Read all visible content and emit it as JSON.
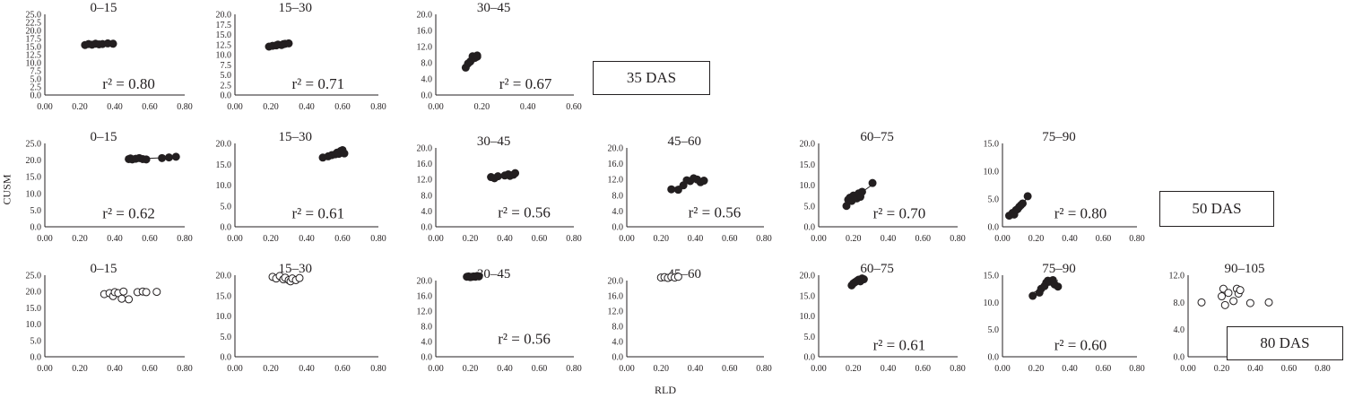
{
  "figure": {
    "y_axis_label": "CUSM",
    "x_axis_label": "RLD"
  },
  "chart_data": [
    {
      "type": "scatter",
      "row": "35 DAS",
      "title": "0–15",
      "r2": "r² = 0.80",
      "xlim": [
        0,
        0.8
      ],
      "ylim": [
        0,
        25
      ],
      "ystep": 2.5,
      "xticks": [
        "0.00",
        "0.20",
        "0.40",
        "0.60",
        "0.80"
      ],
      "yticks": [
        "0.0",
        "2.5",
        "5.0",
        "7.5",
        "10.0",
        "12.5",
        "15.0",
        "17.5",
        "20.0",
        "22.5",
        "25.0"
      ],
      "marker": "filled",
      "trendline": true,
      "x": [
        0.23,
        0.25,
        0.27,
        0.29,
        0.31,
        0.33,
        0.36,
        0.39
      ],
      "y": [
        15.5,
        15.8,
        15.6,
        15.9,
        15.7,
        15.8,
        16.0,
        15.9
      ]
    },
    {
      "type": "scatter",
      "row": "35 DAS",
      "title": "15–30",
      "r2": "r² = 0.71",
      "xlim": [
        0,
        0.8
      ],
      "ylim": [
        0,
        20
      ],
      "ystep": 2.5,
      "xticks": [
        "0.00",
        "0.20",
        "0.40",
        "0.60",
        "0.80"
      ],
      "yticks": [
        "0.0",
        "2.5",
        "5.0",
        "7.5",
        "10.0",
        "12.5",
        "15.0",
        "17.5",
        "20.0"
      ],
      "marker": "filled",
      "trendline": true,
      "x": [
        0.19,
        0.21,
        0.23,
        0.24,
        0.26,
        0.27,
        0.28,
        0.3
      ],
      "y": [
        12.0,
        12.2,
        12.3,
        12.5,
        12.4,
        12.6,
        12.7,
        12.8
      ]
    },
    {
      "type": "scatter",
      "row": "35 DAS",
      "title": "30–45",
      "r2": "r² = 0.67",
      "xlim": [
        0,
        0.6
      ],
      "ylim": [
        0,
        20
      ],
      "ystep": 2.0,
      "xticks": [
        "0.00",
        "0.20",
        "0.40",
        "0.60"
      ],
      "yticks": [
        "0.0",
        "4.0",
        "8.0",
        "12.0",
        "16.0",
        "20.0"
      ],
      "marker": "filled",
      "trendline": true,
      "x": [
        0.13,
        0.14,
        0.15,
        0.16,
        0.16,
        0.17,
        0.18,
        0.18
      ],
      "y": [
        6.8,
        7.8,
        8.3,
        9.0,
        9.6,
        9.2,
        9.8,
        9.5
      ]
    },
    {
      "type": "scatter",
      "row": "50 DAS",
      "title": "0–15",
      "r2": "r² = 0.62",
      "xlim": [
        0,
        0.8
      ],
      "ylim": [
        0,
        25
      ],
      "ystep": 2.5,
      "xticks": [
        "0.00",
        "0.20",
        "0.40",
        "0.60",
        "0.80"
      ],
      "yticks": [
        "0.0",
        "5.0",
        "10.0",
        "15.0",
        "20.0",
        "25.0"
      ],
      "marker": "filled",
      "trendline": true,
      "x": [
        0.48,
        0.49,
        0.5,
        0.52,
        0.54,
        0.56,
        0.58,
        0.67,
        0.71,
        0.75
      ],
      "y": [
        20.3,
        20.5,
        20.2,
        20.4,
        20.6,
        20.3,
        20.2,
        20.6,
        20.8,
        21.0
      ]
    },
    {
      "type": "scatter",
      "row": "50 DAS",
      "title": "15–30",
      "r2": "r² = 0.61",
      "xlim": [
        0,
        0.8
      ],
      "ylim": [
        0,
        20
      ],
      "ystep": 2.5,
      "xticks": [
        "0.00",
        "0.20",
        "0.40",
        "0.60",
        "0.80"
      ],
      "yticks": [
        "0.0",
        "5.0",
        "10.0",
        "15.0",
        "20.0"
      ],
      "marker": "filled",
      "trendline": true,
      "x": [
        0.49,
        0.52,
        0.54,
        0.56,
        0.57,
        0.58,
        0.59,
        0.6,
        0.61
      ],
      "y": [
        16.6,
        16.9,
        17.2,
        17.4,
        17.8,
        17.5,
        18.2,
        18.4,
        17.6
      ]
    },
    {
      "type": "scatter",
      "row": "50 DAS",
      "title": "30–45",
      "r2": "r² = 0.56",
      "xlim": [
        0,
        0.8
      ],
      "ylim": [
        0,
        20
      ],
      "ystep": 2.0,
      "xticks": [
        "0.00",
        "0.20",
        "0.40",
        "0.60",
        "0.80"
      ],
      "yticks": [
        "0.0",
        "4.0",
        "8.0",
        "12.0",
        "16.0",
        "20.0"
      ],
      "marker": "filled",
      "trendline": true,
      "x": [
        0.32,
        0.34,
        0.36,
        0.4,
        0.42,
        0.43,
        0.45,
        0.46
      ],
      "y": [
        12.6,
        12.3,
        12.8,
        13.0,
        13.3,
        12.9,
        13.2,
        13.6
      ]
    },
    {
      "type": "scatter",
      "row": "50 DAS",
      "title": "45–60",
      "r2": "r² = 0.56",
      "xlim": [
        0,
        0.8
      ],
      "ylim": [
        0,
        20
      ],
      "ystep": 2.0,
      "xticks": [
        "0.00",
        "0.20",
        "0.40",
        "0.60",
        "0.80"
      ],
      "yticks": [
        "0.0",
        "4.0",
        "8.0",
        "12.0",
        "16.0",
        "20.0"
      ],
      "marker": "filled",
      "trendline": true,
      "x": [
        0.26,
        0.3,
        0.33,
        0.35,
        0.37,
        0.39,
        0.41,
        0.43,
        0.45
      ],
      "y": [
        9.5,
        9.4,
        10.5,
        11.8,
        11.6,
        12.3,
        12.0,
        11.3,
        11.7
      ]
    },
    {
      "type": "scatter",
      "row": "50 DAS",
      "title": "60–75",
      "r2": "r² = 0.70",
      "xlim": [
        0,
        0.8
      ],
      "ylim": [
        0,
        20
      ],
      "ystep": 2.5,
      "xticks": [
        "0.00",
        "0.20",
        "0.40",
        "0.60",
        "0.80"
      ],
      "yticks": [
        "0.0",
        "5.0",
        "10.0",
        "15.0",
        "20.0"
      ],
      "marker": "filled",
      "trendline": true,
      "x": [
        0.16,
        0.17,
        0.18,
        0.19,
        0.2,
        0.21,
        0.22,
        0.23,
        0.24,
        0.25,
        0.31
      ],
      "y": [
        5.0,
        6.5,
        7.0,
        6.2,
        7.5,
        7.0,
        6.8,
        8.0,
        7.2,
        8.4,
        10.5
      ]
    },
    {
      "type": "scatter",
      "row": "50 DAS",
      "title": "75–90",
      "r2": "r² = 0.80",
      "xlim": [
        0,
        0.8
      ],
      "ylim": [
        0,
        15
      ],
      "ystep": 2.5,
      "xticks": [
        "0.00",
        "0.20",
        "0.40",
        "0.60",
        "0.80"
      ],
      "yticks": [
        "0.0",
        "5.0",
        "10.0",
        "15.0"
      ],
      "marker": "filled",
      "trendline": true,
      "x": [
        0.04,
        0.06,
        0.07,
        0.08,
        0.09,
        0.1,
        0.11,
        0.12,
        0.15
      ],
      "y": [
        2.0,
        2.5,
        2.2,
        3.0,
        3.2,
        3.6,
        3.9,
        4.2,
        5.5
      ]
    },
    {
      "type": "scatter",
      "row": "80 DAS",
      "title": "0–15",
      "r2": "",
      "xlim": [
        0,
        0.8
      ],
      "ylim": [
        0,
        25
      ],
      "ystep": 2.5,
      "xticks": [
        "0.00",
        "0.20",
        "0.40",
        "0.60",
        "0.80"
      ],
      "yticks": [
        "0.0",
        "5.0",
        "10.0",
        "15.0",
        "20.0",
        "25.0"
      ],
      "marker": "open",
      "trendline": false,
      "x": [
        0.34,
        0.37,
        0.39,
        0.4,
        0.42,
        0.44,
        0.45,
        0.48,
        0.53,
        0.56,
        0.58,
        0.64
      ],
      "y": [
        19.2,
        19.5,
        18.6,
        19.8,
        19.5,
        17.8,
        20.0,
        17.6,
        19.8,
        20.0,
        19.8,
        19.9
      ]
    },
    {
      "type": "scatter",
      "row": "80 DAS",
      "title": "15–30",
      "r2": "",
      "xlim": [
        0,
        0.8
      ],
      "ylim": [
        0,
        20
      ],
      "ystep": 2.5,
      "xticks": [
        "0.00",
        "0.20",
        "0.40",
        "0.60",
        "0.80"
      ],
      "yticks": [
        "0.0",
        "5.0",
        "10.0",
        "15.0",
        "20.0"
      ],
      "marker": "open",
      "trendline": false,
      "x": [
        0.21,
        0.23,
        0.25,
        0.27,
        0.28,
        0.3,
        0.31,
        0.32,
        0.34,
        0.36
      ],
      "y": [
        19.6,
        19.2,
        19.8,
        19.0,
        19.4,
        18.8,
        18.5,
        19.2,
        18.8,
        19.3
      ]
    },
    {
      "type": "scatter",
      "row": "80 DAS",
      "title": "30–45",
      "r2": "r² = 0.56",
      "xlim": [
        0,
        0.8
      ],
      "ylim": [
        0,
        20
      ],
      "ystep": 2.0,
      "xticks": [
        "0.00",
        "0.20",
        "0.40",
        "0.60",
        "0.80"
      ],
      "yticks": [
        "0.0",
        "4.0",
        "8.0",
        "12.0",
        "16.0",
        "20.0"
      ],
      "marker": "filled",
      "trendline": true,
      "x": [
        0.18,
        0.19,
        0.2,
        0.21,
        0.22,
        0.23,
        0.24,
        0.25
      ],
      "y": [
        21.0,
        21.1,
        20.9,
        21.0,
        21.1,
        21.0,
        21.2,
        21.1
      ]
    },
    {
      "type": "scatter",
      "row": "80 DAS",
      "title": "45–60",
      "r2": "",
      "xlim": [
        0,
        0.8
      ],
      "ylim": [
        0,
        20
      ],
      "ystep": 2.0,
      "xticks": [
        "0.00",
        "0.20",
        "0.40",
        "0.60",
        "0.80"
      ],
      "yticks": [
        "0.0",
        "4.0",
        "8.0",
        "12.0",
        "16.0",
        "20.0"
      ],
      "marker": "open",
      "trendline": false,
      "x": [
        0.2,
        0.22,
        0.24,
        0.26,
        0.28,
        0.3
      ],
      "y": [
        20.8,
        20.9,
        20.7,
        21.0,
        20.8,
        21.0
      ]
    },
    {
      "type": "scatter",
      "row": "80 DAS",
      "title": "60–75",
      "r2": "r² = 0.61",
      "xlim": [
        0,
        0.8
      ],
      "ylim": [
        0,
        20
      ],
      "ystep": 2.5,
      "xticks": [
        "0.00",
        "0.20",
        "0.40",
        "0.60",
        "0.80"
      ],
      "yticks": [
        "0.0",
        "5.0",
        "10.0",
        "15.0",
        "20.0"
      ],
      "marker": "filled",
      "trendline": true,
      "x": [
        0.19,
        0.2,
        0.21,
        0.22,
        0.23,
        0.24,
        0.25,
        0.26
      ],
      "y": [
        17.5,
        18.0,
        18.3,
        18.6,
        18.9,
        18.5,
        19.2,
        19.0
      ]
    },
    {
      "type": "scatter",
      "row": "80 DAS",
      "title": "75–90",
      "r2": "r² = 0.60",
      "xlim": [
        0,
        0.8
      ],
      "ylim": [
        0,
        15
      ],
      "ystep": 2.5,
      "xticks": [
        "0.00",
        "0.20",
        "0.40",
        "0.60",
        "0.80"
      ],
      "yticks": [
        "0.0",
        "5.0",
        "10.0",
        "15.0"
      ],
      "marker": "filled",
      "trendline": true,
      "x": [
        0.18,
        0.22,
        0.23,
        0.25,
        0.26,
        0.27,
        0.28,
        0.3,
        0.31,
        0.33
      ],
      "y": [
        11.2,
        11.8,
        12.5,
        13.0,
        13.6,
        14.0,
        13.8,
        14.1,
        13.3,
        12.9
      ]
    },
    {
      "type": "scatter",
      "row": "80 DAS",
      "title": "90–105",
      "r2": "",
      "xlim": [
        0,
        0.8
      ],
      "ylim": [
        0,
        12
      ],
      "ystep": 2.0,
      "xticks": [
        "0.00",
        "0.20",
        "0.40",
        "0.60",
        "0.80"
      ],
      "yticks": [
        "0.0",
        "4.0",
        "8.0",
        "12.0"
      ],
      "marker": "open",
      "trendline": false,
      "x": [
        0.08,
        0.2,
        0.21,
        0.22,
        0.24,
        0.27,
        0.29,
        0.3,
        0.31,
        0.37,
        0.48
      ],
      "y": [
        8.0,
        8.9,
        10.0,
        7.6,
        9.4,
        8.2,
        10.0,
        9.3,
        9.8,
        7.9,
        8.0
      ]
    }
  ],
  "das_labels": [
    "35 DAS",
    "50 DAS",
    "80 DAS"
  ]
}
